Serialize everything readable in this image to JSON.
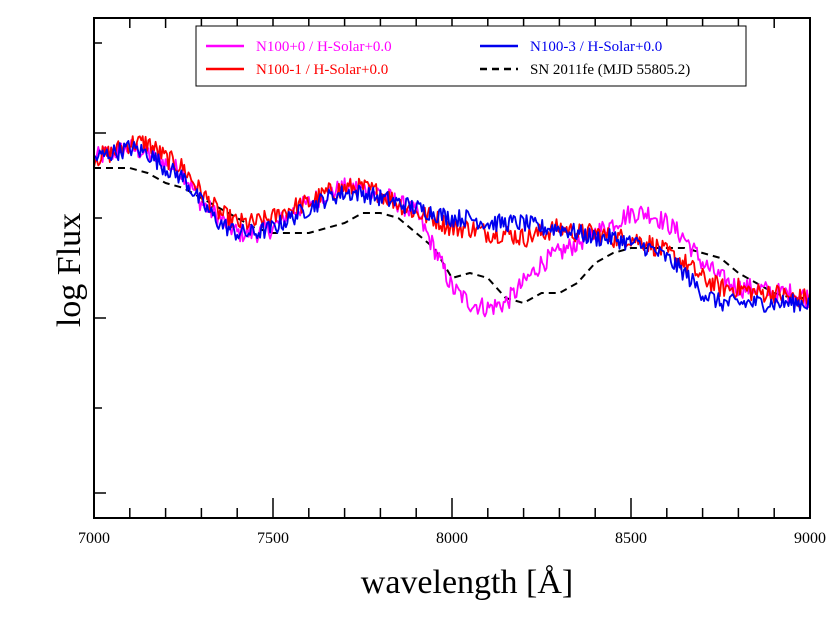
{
  "chart_data": {
    "type": "line",
    "title": "",
    "xlabel": "wavelength [Å]",
    "ylabel": "log Flux",
    "xlim": [
      7000,
      9000
    ],
    "ylim": [
      0,
      1
    ],
    "x_ticks": [
      {
        "value": 7000,
        "label": "7000"
      },
      {
        "value": 7500,
        "label": "7500"
      },
      {
        "value": 8000,
        "label": "8000"
      },
      {
        "value": 8500,
        "label": "8500"
      },
      {
        "value": 9000,
        "label": "9000"
      }
    ],
    "legend_position": "top",
    "series": [
      {
        "name": "N100+0 / H-Solar+0.0",
        "color": "#ff00ff",
        "style": "solid",
        "noise": 0.02,
        "points": [
          [
            7000,
            0.72
          ],
          [
            7050,
            0.73
          ],
          [
            7100,
            0.74
          ],
          [
            7150,
            0.73
          ],
          [
            7200,
            0.71
          ],
          [
            7250,
            0.69
          ],
          [
            7300,
            0.63
          ],
          [
            7350,
            0.6
          ],
          [
            7400,
            0.57
          ],
          [
            7450,
            0.57
          ],
          [
            7500,
            0.58
          ],
          [
            7550,
            0.61
          ],
          [
            7600,
            0.63
          ],
          [
            7650,
            0.65
          ],
          [
            7700,
            0.66
          ],
          [
            7750,
            0.66
          ],
          [
            7800,
            0.65
          ],
          [
            7850,
            0.63
          ],
          [
            7900,
            0.61
          ],
          [
            7950,
            0.54
          ],
          [
            8000,
            0.46
          ],
          [
            8050,
            0.43
          ],
          [
            8100,
            0.42
          ],
          [
            8150,
            0.43
          ],
          [
            8200,
            0.47
          ],
          [
            8250,
            0.51
          ],
          [
            8300,
            0.53
          ],
          [
            8350,
            0.55
          ],
          [
            8400,
            0.57
          ],
          [
            8450,
            0.59
          ],
          [
            8500,
            0.61
          ],
          [
            8550,
            0.61
          ],
          [
            8600,
            0.59
          ],
          [
            8650,
            0.56
          ],
          [
            8700,
            0.51
          ],
          [
            8750,
            0.48
          ],
          [
            8800,
            0.46
          ],
          [
            8850,
            0.46
          ],
          [
            8900,
            0.45
          ],
          [
            8950,
            0.45
          ],
          [
            9000,
            0.44
          ]
        ]
      },
      {
        "name": "N100-1 / H-Solar+0.0",
        "color": "#ff0000",
        "style": "solid",
        "noise": 0.02,
        "points": [
          [
            7000,
            0.72
          ],
          [
            7050,
            0.73
          ],
          [
            7100,
            0.75
          ],
          [
            7150,
            0.75
          ],
          [
            7200,
            0.72
          ],
          [
            7250,
            0.7
          ],
          [
            7300,
            0.65
          ],
          [
            7350,
            0.61
          ],
          [
            7400,
            0.59
          ],
          [
            7450,
            0.59
          ],
          [
            7500,
            0.6
          ],
          [
            7550,
            0.62
          ],
          [
            7600,
            0.63
          ],
          [
            7650,
            0.65
          ],
          [
            7700,
            0.66
          ],
          [
            7750,
            0.66
          ],
          [
            7800,
            0.65
          ],
          [
            7850,
            0.63
          ],
          [
            7900,
            0.61
          ],
          [
            7950,
            0.6
          ],
          [
            8000,
            0.58
          ],
          [
            8050,
            0.58
          ],
          [
            8100,
            0.57
          ],
          [
            8150,
            0.57
          ],
          [
            8200,
            0.56
          ],
          [
            8250,
            0.57
          ],
          [
            8300,
            0.58
          ],
          [
            8350,
            0.57
          ],
          [
            8400,
            0.57
          ],
          [
            8450,
            0.56
          ],
          [
            8500,
            0.56
          ],
          [
            8550,
            0.55
          ],
          [
            8600,
            0.53
          ],
          [
            8650,
            0.51
          ],
          [
            8700,
            0.48
          ],
          [
            8750,
            0.46
          ],
          [
            8800,
            0.46
          ],
          [
            8850,
            0.45
          ],
          [
            8900,
            0.45
          ],
          [
            8950,
            0.44
          ],
          [
            9000,
            0.44
          ]
        ]
      },
      {
        "name": "N100-3 / H-Solar+0.0",
        "color": "#0000ee",
        "style": "solid",
        "noise": 0.018,
        "points": [
          [
            7000,
            0.72
          ],
          [
            7050,
            0.73
          ],
          [
            7100,
            0.74
          ],
          [
            7150,
            0.73
          ],
          [
            7200,
            0.7
          ],
          [
            7250,
            0.68
          ],
          [
            7300,
            0.63
          ],
          [
            7350,
            0.59
          ],
          [
            7400,
            0.57
          ],
          [
            7450,
            0.57
          ],
          [
            7500,
            0.58
          ],
          [
            7550,
            0.6
          ],
          [
            7600,
            0.62
          ],
          [
            7650,
            0.64
          ],
          [
            7700,
            0.65
          ],
          [
            7750,
            0.65
          ],
          [
            7800,
            0.64
          ],
          [
            7850,
            0.63
          ],
          [
            7900,
            0.62
          ],
          [
            7950,
            0.61
          ],
          [
            8000,
            0.6
          ],
          [
            8050,
            0.6
          ],
          [
            8100,
            0.59
          ],
          [
            8150,
            0.59
          ],
          [
            8200,
            0.59
          ],
          [
            8250,
            0.58
          ],
          [
            8300,
            0.58
          ],
          [
            8350,
            0.57
          ],
          [
            8400,
            0.56
          ],
          [
            8450,
            0.56
          ],
          [
            8500,
            0.55
          ],
          [
            8550,
            0.54
          ],
          [
            8600,
            0.52
          ],
          [
            8650,
            0.49
          ],
          [
            8700,
            0.45
          ],
          [
            8750,
            0.43
          ],
          [
            8800,
            0.43
          ],
          [
            8850,
            0.43
          ],
          [
            8900,
            0.43
          ],
          [
            8950,
            0.43
          ],
          [
            9000,
            0.43
          ]
        ]
      },
      {
        "name": "SN 2011fe (MJD 55805.2)",
        "color": "#000000",
        "style": "dashed",
        "noise": 0,
        "points": [
          [
            7000,
            0.7
          ],
          [
            7050,
            0.7
          ],
          [
            7100,
            0.7
          ],
          [
            7150,
            0.69
          ],
          [
            7200,
            0.67
          ],
          [
            7250,
            0.66
          ],
          [
            7300,
            0.64
          ],
          [
            7350,
            0.62
          ],
          [
            7400,
            0.6
          ],
          [
            7450,
            0.58
          ],
          [
            7500,
            0.57
          ],
          [
            7550,
            0.57
          ],
          [
            7600,
            0.57
          ],
          [
            7650,
            0.58
          ],
          [
            7700,
            0.59
          ],
          [
            7750,
            0.61
          ],
          [
            7800,
            0.61
          ],
          [
            7850,
            0.6
          ],
          [
            7900,
            0.57
          ],
          [
            7950,
            0.54
          ],
          [
            8000,
            0.48
          ],
          [
            8050,
            0.49
          ],
          [
            8100,
            0.48
          ],
          [
            8150,
            0.44
          ],
          [
            8200,
            0.43
          ],
          [
            8250,
            0.45
          ],
          [
            8300,
            0.45
          ],
          [
            8350,
            0.47
          ],
          [
            8400,
            0.51
          ],
          [
            8450,
            0.53
          ],
          [
            8500,
            0.54
          ],
          [
            8550,
            0.54
          ],
          [
            8600,
            0.54
          ],
          [
            8650,
            0.54
          ],
          [
            8700,
            0.53
          ],
          [
            8750,
            0.52
          ],
          [
            8800,
            0.49
          ],
          [
            8850,
            0.47
          ],
          [
            8900,
            0.45
          ],
          [
            8950,
            0.44
          ],
          [
            9000,
            0.44
          ]
        ]
      }
    ]
  }
}
